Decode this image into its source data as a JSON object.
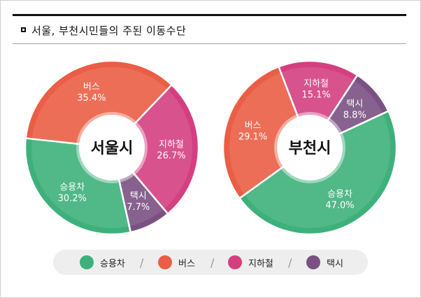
{
  "title": "서울, 부천시민들의 주된 이동수단",
  "chart_data": [
    {
      "type": "pie",
      "center_label": "서울시",
      "categories": [
        "승용차",
        "버스",
        "지하철",
        "택시"
      ],
      "values": [
        30.2,
        35.4,
        26.7,
        7.7
      ],
      "value_labels": [
        "30.2%",
        "35.4%",
        "26.7%",
        "7.7%"
      ]
    },
    {
      "type": "pie",
      "center_label": "부천시",
      "categories": [
        "승용차",
        "버스",
        "지하철",
        "택시"
      ],
      "values": [
        47.0,
        29.1,
        15.1,
        8.8
      ],
      "value_labels": [
        "47.0%",
        "29.1%",
        "15.1%",
        "8.8%"
      ]
    }
  ],
  "colors": {
    "승용차": "#3eb07b",
    "버스": "#ea5e45",
    "지하철": "#d43f80",
    "택시": "#7a5182"
  },
  "legend": {
    "items": [
      {
        "label": "승용차",
        "color": "#3eb07b"
      },
      {
        "label": "버스",
        "color": "#ea5e45"
      },
      {
        "label": "지하철",
        "color": "#d43f80"
      },
      {
        "label": "택시",
        "color": "#7a5182"
      }
    ],
    "separator": "/"
  }
}
